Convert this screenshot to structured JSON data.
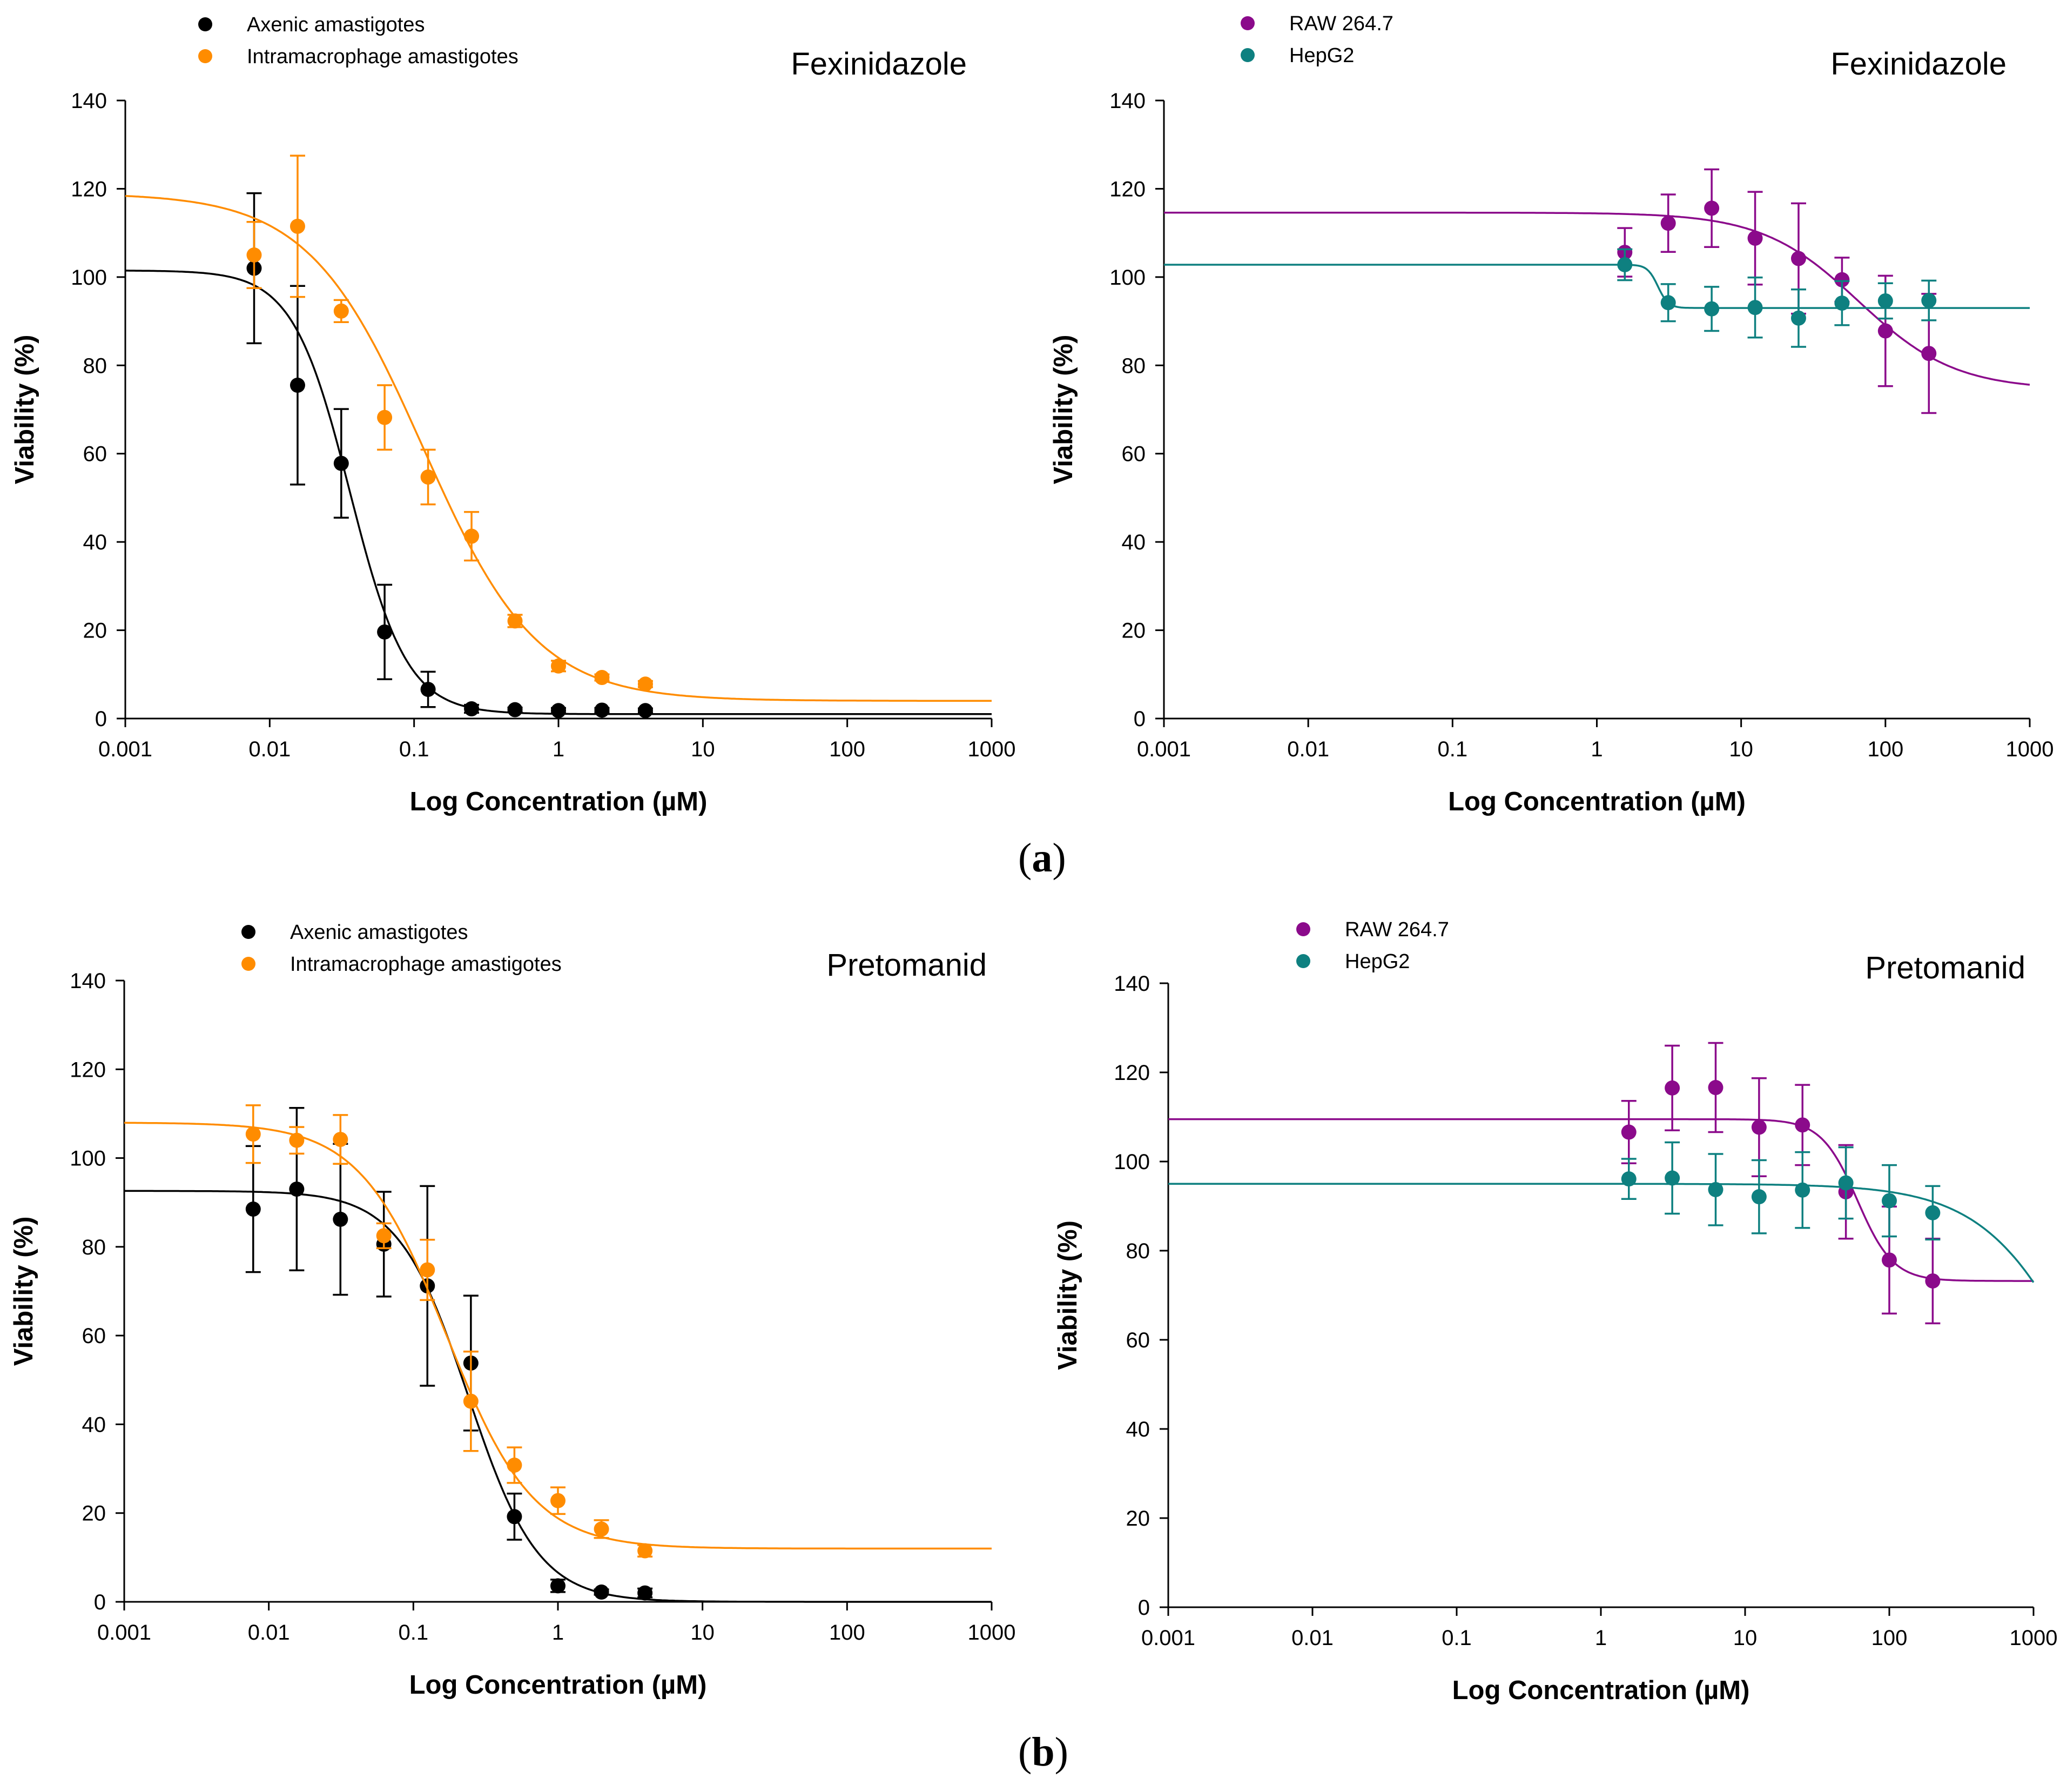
{
  "colors": {
    "black": "#000000",
    "orange": "#FF8C00",
    "purple": "#8B0A8B",
    "teal": "#0E8080"
  },
  "panel_labels": {
    "a": "a",
    "b": "b"
  },
  "chart_data": [
    {
      "type": "scatter",
      "title": "Fexinidazole",
      "xlabel": "Log Concentration (µM)",
      "ylabel": "Viability (%)",
      "xscale": "log",
      "xlim": [
        0.001,
        1000
      ],
      "ylim": [
        0,
        140
      ],
      "xticks": [
        "0.001",
        "0.01",
        "0.1",
        "1",
        "10",
        "100",
        "1000"
      ],
      "yticks": [
        "0",
        "20",
        "40",
        "60",
        "80",
        "100",
        "120",
        "140"
      ],
      "legend_position": "top-left",
      "series": [
        {
          "name": "Axenic amastigotes",
          "color": "#000000",
          "x": [
            0.0078,
            0.0156,
            0.0313,
            0.0625,
            0.125,
            0.25,
            0.5,
            1,
            2,
            4
          ],
          "y": [
            102,
            75.5,
            57.8,
            19.6,
            6.6,
            2.2,
            2.0,
            1.8,
            1.9,
            1.8
          ],
          "err": [
            17,
            22.5,
            12.3,
            10.7,
            4.0,
            0.9,
            0.5,
            0.6,
            0.5,
            0.5
          ],
          "fit": {
            "top": 101.5,
            "bottom": 1.0,
            "ec50": 0.036,
            "hill": 2.2
          }
        },
        {
          "name": "Intramacrophage amastigotes",
          "color": "#FF8C00",
          "x": [
            0.0078,
            0.0156,
            0.0313,
            0.0625,
            0.125,
            0.25,
            0.5,
            1,
            2,
            4
          ],
          "y": [
            105,
            111.5,
            92.3,
            68.2,
            54.7,
            41.3,
            22.1,
            11.9,
            9.3,
            7.8
          ],
          "err": [
            7.5,
            16,
            2.5,
            7.3,
            6.2,
            5.5,
            1.4,
            1.2,
            0.7,
            0.7
          ],
          "fit": {
            "top": 119,
            "bottom": 4.0,
            "ec50": 0.115,
            "hill": 1.1
          }
        }
      ]
    },
    {
      "type": "scatter",
      "title": "Fexinidazole",
      "xlabel": "Log Concentration (µM)",
      "ylabel": "Viability (%)",
      "xscale": "log",
      "xlim": [
        0.001,
        1000
      ],
      "ylim": [
        0,
        140
      ],
      "xticks": [
        "0.001",
        "0.01",
        "0.1",
        "1",
        "10",
        "100",
        "1000"
      ],
      "yticks": [
        "0",
        "20",
        "40",
        "60",
        "80",
        "100",
        "120",
        "140"
      ],
      "legend_position": "top-left",
      "series": [
        {
          "name": "RAW 264.7",
          "color": "#8B0A8B",
          "x": [
            1.5625,
            3.125,
            6.25,
            12.5,
            25,
            50,
            100,
            200
          ],
          "y": [
            105.6,
            112.2,
            115.6,
            108.8,
            104.2,
            99.4,
            87.8,
            82.7
          ],
          "err": [
            5.5,
            6.5,
            8.8,
            10.5,
            12.5,
            5.0,
            12.5,
            13.5
          ],
          "fit": {
            "top": 114.6,
            "bottom": 74.5,
            "ec50": 65,
            "hill": 1.3
          }
        },
        {
          "name": "HepG2",
          "color": "#0E8080",
          "x": [
            1.5625,
            3.125,
            6.25,
            12.5,
            25,
            50,
            100,
            200
          ],
          "y": [
            102.8,
            94.2,
            92.8,
            93.1,
            90.7,
            94.1,
            94.6,
            94.7
          ],
          "err": [
            3.5,
            4.2,
            5.0,
            6.8,
            6.5,
            5.0,
            4.0,
            4.5
          ],
          "fit": {
            "top": 102.8,
            "bottom": 93.0,
            "ec50": 2.65,
            "hill": 12
          }
        }
      ]
    },
    {
      "type": "scatter",
      "title": "Pretomanid",
      "xlabel": "Log Concentration (µM)",
      "ylabel": "Viability (%)",
      "xscale": "log",
      "xlim": [
        0.001,
        1000
      ],
      "ylim": [
        0,
        140
      ],
      "xticks": [
        "0.001",
        "0.01",
        "0.1",
        "1",
        "10",
        "100",
        "1000"
      ],
      "yticks": [
        "0",
        "20",
        "40",
        "60",
        "80",
        "100",
        "120",
        "140"
      ],
      "legend_position": "top-left",
      "series": [
        {
          "name": "Axenic amastigotes",
          "color": "#000000",
          "x": [
            0.0078,
            0.0156,
            0.0313,
            0.0625,
            0.125,
            0.25,
            0.5,
            1,
            2,
            4
          ],
          "y": [
            88.5,
            93.0,
            86.2,
            80.6,
            71.2,
            53.8,
            19.2,
            3.6,
            2.2,
            2.0
          ],
          "err": [
            14.2,
            18.3,
            17.0,
            11.8,
            22.5,
            15.2,
            5.2,
            1.4,
            0.6,
            1.0
          ],
          "fit": {
            "top": 92.6,
            "bottom": 0.0,
            "ec50": 0.24,
            "hill": 1.8
          }
        },
        {
          "name": "Intramacrophage amastigotes",
          "color": "#FF8C00",
          "x": [
            0.0078,
            0.0156,
            0.0313,
            0.0625,
            0.125,
            0.25,
            0.5,
            1,
            2,
            4
          ],
          "y": [
            105.4,
            104.0,
            104.2,
            82.5,
            74.8,
            45.2,
            30.8,
            22.8,
            16.4,
            11.5
          ],
          "err": [
            6.5,
            3.0,
            5.5,
            2.8,
            6.8,
            11.2,
            4.0,
            3.0,
            2.0,
            1.3
          ],
          "fit": {
            "top": 108.0,
            "bottom": 12.0,
            "ec50": 0.17,
            "hill": 1.45
          }
        }
      ]
    },
    {
      "type": "scatter",
      "title": "Pretomanid",
      "xlabel": "Log Concentration (µM)",
      "ylabel": "Viability (%)",
      "xscale": "log",
      "xlim": [
        0.001,
        1000
      ],
      "ylim": [
        0,
        140
      ],
      "xticks": [
        "0.001",
        "0.01",
        "0.1",
        "1",
        "10",
        "100",
        "1000"
      ],
      "yticks": [
        "0",
        "20",
        "40",
        "60",
        "80",
        "100",
        "120",
        "140"
      ],
      "legend_position": "top-left",
      "series": [
        {
          "name": "RAW 264.7",
          "color": "#8B0A8B",
          "x": [
            1.5625,
            3.125,
            6.25,
            12.5,
            25,
            50,
            100,
            200
          ],
          "y": [
            106.6,
            116.5,
            116.6,
            107.7,
            108.2,
            93.2,
            77.9,
            73.2
          ],
          "err": [
            7.0,
            9.5,
            10.0,
            11.0,
            9.0,
            10.5,
            12.0,
            9.5
          ],
          "fit": {
            "top": 109.5,
            "bottom": 73.2,
            "ec50": 60,
            "hill": 3.5
          }
        },
        {
          "name": "HepG2",
          "color": "#0E8080",
          "x": [
            1.5625,
            3.125,
            6.25,
            12.5,
            25,
            50,
            100,
            200
          ],
          "y": [
            96.1,
            96.3,
            93.7,
            92.1,
            93.6,
            95.2,
            91.2,
            88.5
          ],
          "err": [
            4.5,
            8.0,
            8.0,
            8.2,
            8.5,
            8.0,
            8.0,
            6.0
          ],
          "fit": {
            "top": 95.0,
            "bottom": 0.0,
            "ec50": 2700,
            "hill": 1.2
          }
        }
      ]
    }
  ]
}
